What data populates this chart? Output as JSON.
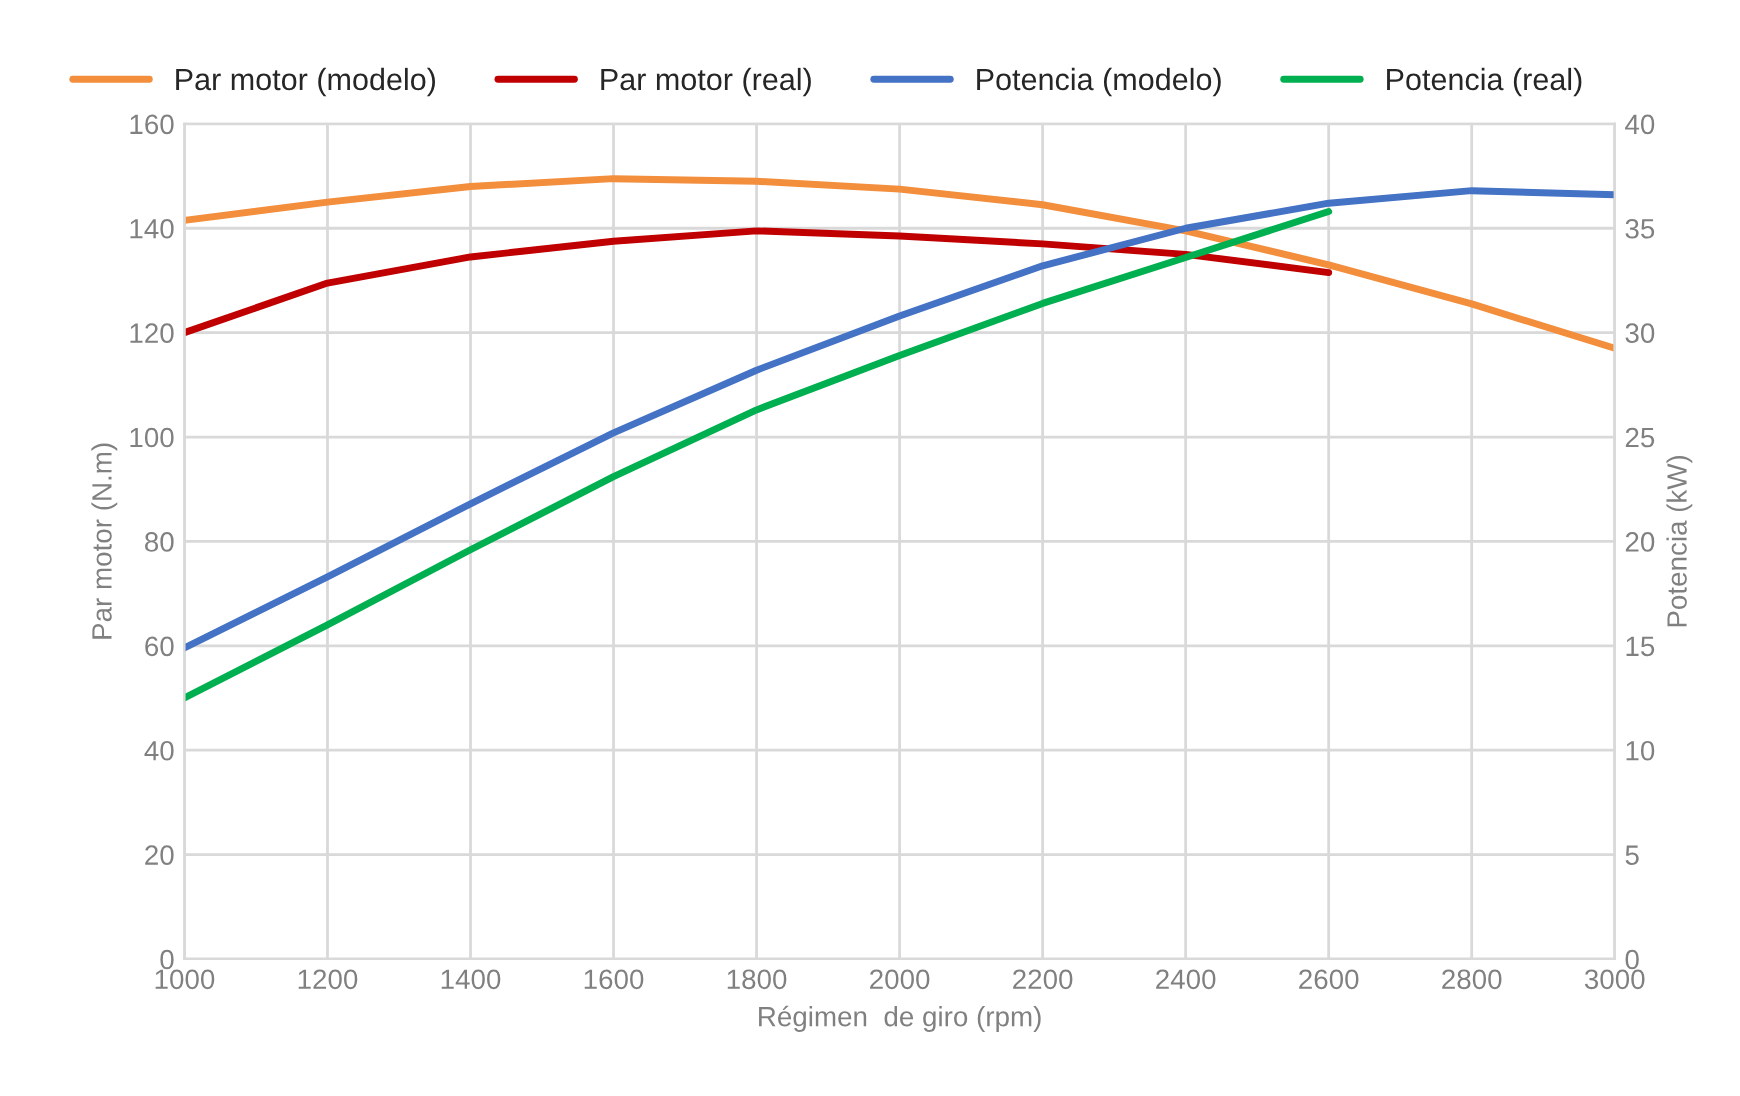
{
  "chart_data": {
    "type": "line",
    "xlabel": "Régimen  de giro (rpm)",
    "ylabel": "Par motor (N.m)",
    "y2label": "Potencia (kW)",
    "x": [
      1000,
      1200,
      1400,
      1600,
      1800,
      2000,
      2200,
      2400,
      2600,
      2800,
      3000
    ],
    "series": [
      {
        "name": "Par motor (modelo)",
        "color": "#f28e3c",
        "values": [
          141.5,
          145,
          148,
          149.5,
          149,
          147.5,
          144.5,
          139.5,
          133,
          125.5,
          117
        ]
      },
      {
        "name": "Par motor (real)",
        "color": "#c00000",
        "values": [
          120,
          129.5,
          134.5,
          137.5,
          139.5,
          138.5,
          137,
          135,
          131.5,
          null,
          null
        ]
      },
      {
        "name": "Potencia (modelo)",
        "color": "#4472c4",
        "axis": "y2",
        "values": [
          14.9,
          18.3,
          21.8,
          25.2,
          28.2,
          30.8,
          33.2,
          35,
          36.2,
          36.8,
          36.6
        ]
      },
      {
        "name": "Potencia (real)",
        "color": "#00b050",
        "axis": "y2",
        "values": [
          12.5,
          16,
          19.6,
          23.1,
          26.3,
          28.9,
          31.4,
          33.6,
          35.8,
          null,
          null
        ]
      }
    ],
    "xlim": [
      1000,
      3000
    ],
    "xticks": [
      1000,
      1200,
      1400,
      1600,
      1800,
      2000,
      2200,
      2400,
      2600,
      2800,
      3000
    ],
    "ylim": [
      0,
      160
    ],
    "yticks": [
      0,
      20,
      40,
      60,
      80,
      100,
      120,
      140,
      160
    ],
    "y2lim": [
      0,
      40
    ],
    "y2ticks": [
      0,
      5,
      10,
      15,
      20,
      25,
      30,
      35,
      40
    ],
    "grid": true,
    "legend": "top",
    "marker": "none",
    "line_style": "solid"
  }
}
